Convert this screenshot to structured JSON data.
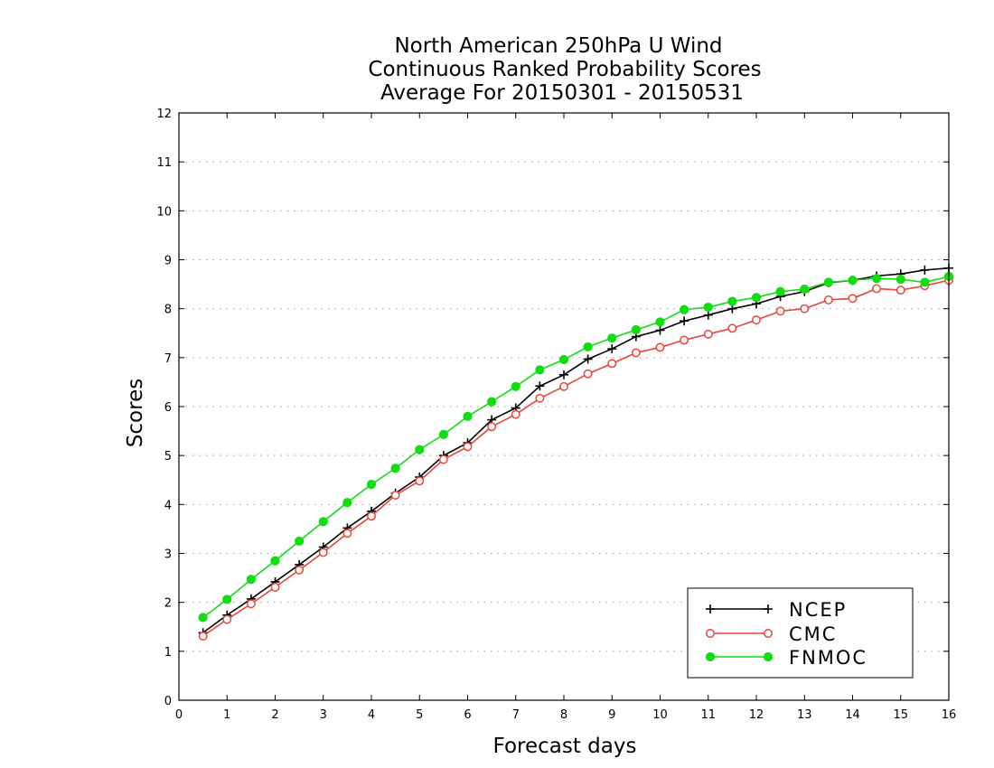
{
  "chart_data": {
    "type": "line",
    "title_lines": [
      "North American 250hPa U Wind",
      "Continuous Ranked Probability Scores",
      "Average For 20150301 - 20150531"
    ],
    "xlabel": "Forecast days",
    "ylabel": "Scores",
    "xlim": [
      0,
      16
    ],
    "ylim": [
      0,
      12
    ],
    "xticks": [
      0,
      1,
      2,
      3,
      4,
      5,
      6,
      7,
      8,
      9,
      10,
      11,
      12,
      13,
      14,
      15,
      16
    ],
    "yticks": [
      0,
      1,
      2,
      3,
      4,
      5,
      6,
      7,
      8,
      9,
      10,
      11,
      12
    ],
    "grid": true,
    "legend_position": "bottom-right",
    "x": [
      0.5,
      1,
      1.5,
      2,
      2.5,
      3,
      3.5,
      4,
      4.5,
      5,
      5.5,
      6,
      6.5,
      7,
      7.5,
      8,
      8.5,
      9,
      9.5,
      10,
      10.5,
      11,
      11.5,
      12,
      12.5,
      13,
      13.5,
      14,
      14.5,
      15,
      15.5,
      16
    ],
    "series": [
      {
        "name": "NCEP",
        "color": "#000000",
        "marker": "plus",
        "values": [
          1.38,
          1.74,
          2.07,
          2.42,
          2.77,
          3.13,
          3.52,
          3.86,
          4.23,
          4.56,
          5.0,
          5.26,
          5.73,
          5.97,
          6.42,
          6.65,
          6.97,
          7.18,
          7.43,
          7.56,
          7.75,
          7.87,
          8.0,
          8.1,
          8.25,
          8.35,
          8.53,
          8.58,
          8.67,
          8.71,
          8.79,
          8.83
        ]
      },
      {
        "name": "CMC",
        "color": "#e8453c",
        "marker": "open-circle",
        "values": [
          1.31,
          1.65,
          1.97,
          2.31,
          2.66,
          3.02,
          3.41,
          3.76,
          4.19,
          4.48,
          4.92,
          5.18,
          5.59,
          5.84,
          6.17,
          6.41,
          6.67,
          6.88,
          7.1,
          7.21,
          7.36,
          7.48,
          7.6,
          7.77,
          7.95,
          8.0,
          8.18,
          8.21,
          8.41,
          8.38,
          8.47,
          8.58
        ]
      },
      {
        "name": "FNMOC",
        "color": "#11dd11",
        "marker": "filled-circle",
        "values": [
          1.69,
          2.06,
          2.47,
          2.85,
          3.25,
          3.65,
          4.04,
          4.41,
          4.74,
          5.12,
          5.43,
          5.8,
          6.1,
          6.41,
          6.75,
          6.96,
          7.22,
          7.4,
          7.57,
          7.73,
          7.98,
          8.03,
          8.15,
          8.23,
          8.35,
          8.4,
          8.54,
          8.58,
          8.62,
          8.6,
          8.54,
          8.66
        ]
      }
    ]
  }
}
